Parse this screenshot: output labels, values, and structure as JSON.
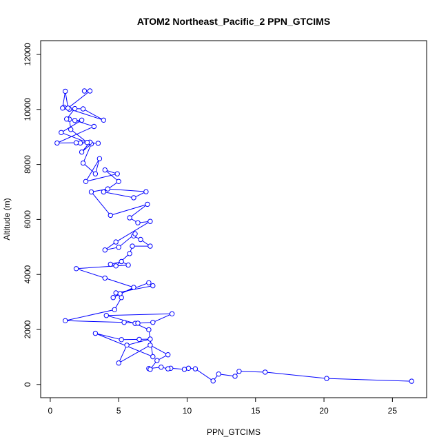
{
  "chart_data": {
    "type": "line",
    "title": "ATOM2 Northeast_Pacific_2 PPN_GTCIMS",
    "xlabel": "PPN_GTCIMS",
    "ylabel": "Altitude (m)",
    "xlim": [
      -0.7,
      27.5
    ],
    "ylim": [
      -480,
      12500
    ],
    "xticks": [
      0,
      5,
      10,
      15,
      20,
      25
    ],
    "yticks": [
      0,
      2000,
      4000,
      6000,
      8000,
      10000,
      12000
    ],
    "series_color": "#0000ff",
    "marker": "open-circle",
    "grid": false,
    "series": [
      {
        "x": [
          26.4,
          20.2,
          15.7,
          13.8,
          13.5,
          12.3,
          11.9,
          10.6,
          10.1,
          9.8,
          8.8,
          8.6,
          8.1,
          7.2,
          7.3,
          7.8,
          8.6,
          7.3,
          5.0,
          5.6,
          7.3,
          6.5,
          5.2,
          3.3,
          7.5,
          7.2,
          6.2,
          4.1,
          8.9,
          7.5,
          6.4,
          5.4,
          1.1,
          4.7,
          5.2,
          4.8,
          7.5,
          7.2,
          5.1,
          4.6,
          6.1,
          4.0,
          1.9,
          5.7,
          5.2,
          4.4,
          4.8,
          5.8,
          6.0,
          7.3,
          6.6,
          6.1,
          6.2,
          5.0,
          4.0,
          4.8,
          7.3,
          6.4,
          5.8,
          7.1,
          4.4,
          3.0,
          4.2,
          7.0,
          6.1,
          3.9,
          5.0,
          4.0,
          4.9,
          2.6,
          3.6,
          3.3,
          2.4,
          3.0,
          2.3,
          2.9,
          2.2,
          3.5,
          1.9,
          0.5,
          3.2,
          1.8,
          2.3,
          0.8,
          2.7,
          1.5,
          1.4,
          1.2,
          1.8,
          2.4,
          3.9,
          1.0,
          1.4,
          0.9,
          1.1,
          1.3,
          2.9,
          2.5
        ],
        "y": [
          120,
          220,
          450,
          480,
          300,
          380,
          130,
          570,
          590,
          550,
          590,
          570,
          630,
          580,
          550,
          870,
          1080,
          1430,
          780,
          1430,
          1650,
          1640,
          1630,
          1860,
          1010,
          1990,
          2220,
          2510,
          2570,
          2260,
          2230,
          2260,
          2320,
          2720,
          3160,
          3330,
          3590,
          3700,
          3300,
          3160,
          3530,
          3870,
          4210,
          4340,
          4470,
          4370,
          4310,
          4760,
          5030,
          5030,
          5270,
          5400,
          5480,
          4990,
          4890,
          5180,
          5930,
          5880,
          6060,
          6550,
          6150,
          7000,
          7110,
          7010,
          6790,
          7000,
          7380,
          7800,
          7660,
          7380,
          8210,
          7660,
          8050,
          8750,
          8450,
          8810,
          8780,
          8770,
          8790,
          8780,
          9380,
          9600,
          9610,
          9160,
          8800,
          9270,
          9640,
          9650,
          10030,
          10020,
          9610,
          10080,
          10010,
          10050,
          10660,
          10050,
          10670,
          10670
        ]
      }
    ]
  }
}
